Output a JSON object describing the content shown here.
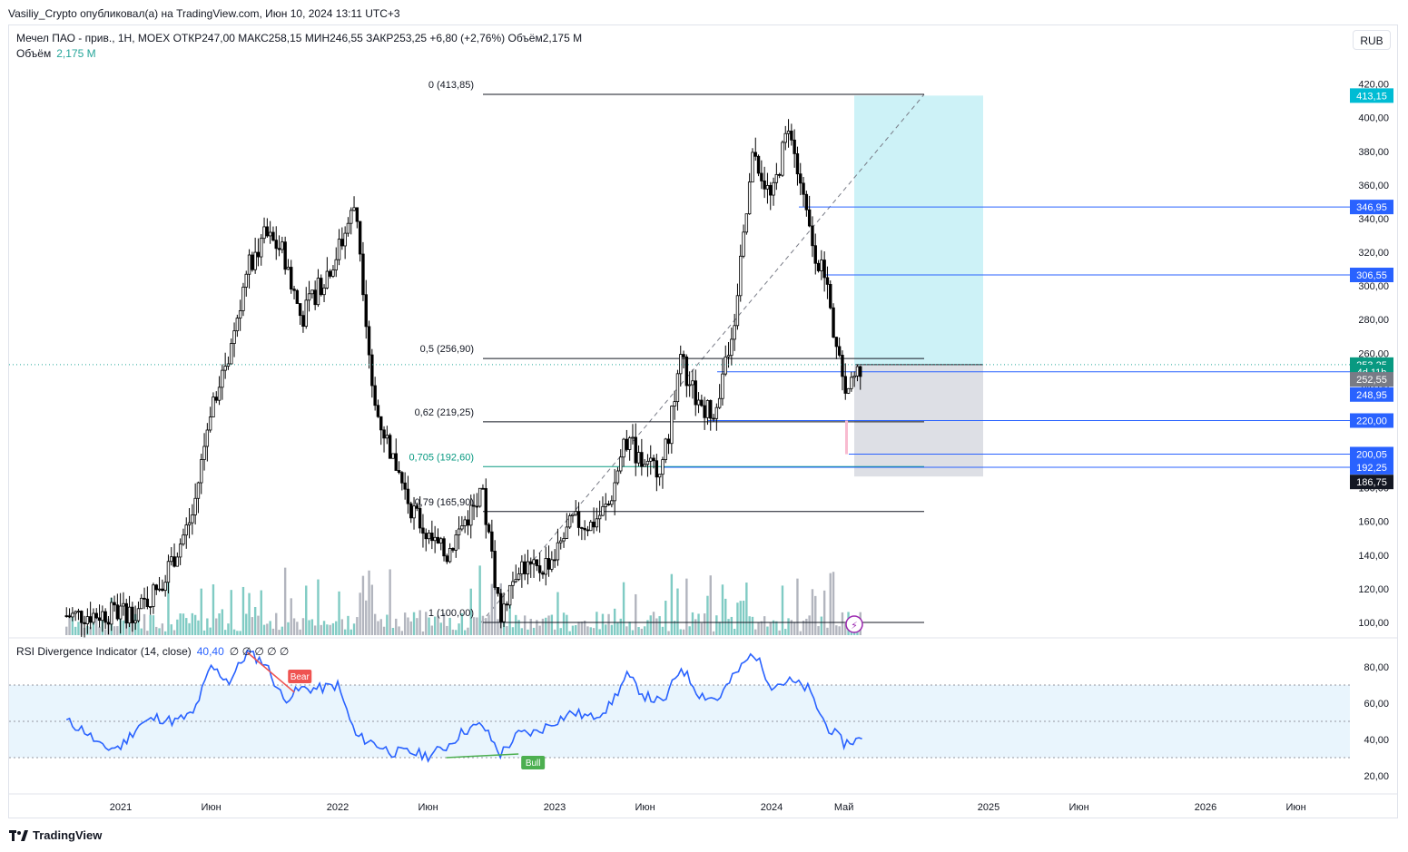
{
  "header": {
    "published": "Vasiliy_Crypto опубликовал(а) на TradingView.com, Июн 10, 2024 13:11 UTC+3",
    "symbol_line": "Мечел ПАО - прив., 1Н, MOEX  ОТКР247,00  МАКС258,15  МИН246,55  ЗАКР253,25  +6,80 (+2,76%)  Объём2,175 М",
    "volume_label": "Объём",
    "volume_value": "2,175 М",
    "currency_button": "RUB"
  },
  "rsi_legend": {
    "name": "RSI Divergence Indicator (14, close)",
    "value": "40,40",
    "zeros": "∅ ∅ ∅ ∅ ∅"
  },
  "footer": {
    "brand": "TradingView"
  },
  "colors": {
    "up": "#26a69a",
    "down": "#ef5350",
    "candle": "#000000",
    "level_blue": "#2962ff",
    "fib_teal": "#089981",
    "target_zone": "#b2ebf2",
    "stop_zone": "#d1d4dc",
    "rsi_line": "#2962ff",
    "rsi_band": "#e3f2fd"
  },
  "chart_data": {
    "type": "candlestick",
    "symbol": "Мечел ПАО - прив.",
    "ylim": [
      92,
      428
    ],
    "y_ticks": [
      "420,00",
      "400,00",
      "380,00",
      "360,00",
      "340,00",
      "320,00",
      "300,00",
      "280,00",
      "260,00",
      "240,00",
      "220,00",
      "200,00",
      "180,00",
      "160,00",
      "140,00",
      "120,00",
      "100,00"
    ],
    "y_tick_values": [
      420,
      400,
      380,
      360,
      340,
      320,
      300,
      280,
      260,
      240,
      220,
      200,
      180,
      160,
      140,
      120,
      100
    ],
    "x_ticks": [
      "2021",
      "Июн",
      "2022",
      "Июн",
      "2023",
      "Июн",
      "2024",
      "Май",
      "2025",
      "Июн",
      "2026",
      "Июн"
    ],
    "x_tick_dates": [
      "2021-01",
      "2021-06",
      "2022-01",
      "2022-06",
      "2023-01",
      "2023-06",
      "2024-01",
      "2024-05",
      "2025-01",
      "2025-06",
      "2026-01",
      "2026-06"
    ],
    "price_path": [
      {
        "date": "2020-10",
        "price": 104
      },
      {
        "date": "2020-12",
        "price": 105
      },
      {
        "date": "2021-02",
        "price": 107
      },
      {
        "date": "2021-03",
        "price": 120
      },
      {
        "date": "2021-04",
        "price": 140
      },
      {
        "date": "2021-05",
        "price": 165
      },
      {
        "date": "2021-06",
        "price": 230
      },
      {
        "date": "2021-07",
        "price": 260
      },
      {
        "date": "2021-08",
        "price": 310
      },
      {
        "date": "2021-09",
        "price": 330
      },
      {
        "date": "2021-10",
        "price": 320
      },
      {
        "date": "2021-11",
        "price": 280
      },
      {
        "date": "2021-12",
        "price": 300
      },
      {
        "date": "2022-01",
        "price": 320
      },
      {
        "date": "2022-02",
        "price": 350
      },
      {
        "date": "2022-03",
        "price": 230
      },
      {
        "date": "2022-04",
        "price": 200
      },
      {
        "date": "2022-05",
        "price": 170
      },
      {
        "date": "2022-06",
        "price": 150
      },
      {
        "date": "2022-07",
        "price": 140
      },
      {
        "date": "2022-08",
        "price": 160
      },
      {
        "date": "2022-09",
        "price": 175
      },
      {
        "date": "2022-10",
        "price": 105
      },
      {
        "date": "2022-11",
        "price": 135
      },
      {
        "date": "2022-12",
        "price": 130
      },
      {
        "date": "2023-01",
        "price": 140
      },
      {
        "date": "2023-02",
        "price": 160
      },
      {
        "date": "2023-03",
        "price": 158
      },
      {
        "date": "2023-04",
        "price": 170
      },
      {
        "date": "2023-05",
        "price": 210
      },
      {
        "date": "2023-06",
        "price": 190
      },
      {
        "date": "2023-07",
        "price": 195
      },
      {
        "date": "2023-08",
        "price": 255
      },
      {
        "date": "2023-09",
        "price": 230
      },
      {
        "date": "2023-10",
        "price": 225
      },
      {
        "date": "2023-11",
        "price": 285
      },
      {
        "date": "2023-12",
        "price": 380
      },
      {
        "date": "2024-01",
        "price": 350
      },
      {
        "date": "2024-02",
        "price": 400
      },
      {
        "date": "2024-03",
        "price": 335
      },
      {
        "date": "2024-04",
        "price": 300
      },
      {
        "date": "2024-05",
        "price": 240
      },
      {
        "date": "2024-06",
        "price": 253.25
      }
    ],
    "fib_levels": [
      {
        "label": "0 (413,85)",
        "price": 413.85
      },
      {
        "label": "0,5 (256,90)",
        "price": 256.9
      },
      {
        "label": "0,62 (219,25)",
        "price": 219.25
      },
      {
        "label": "0,705 (192,60)",
        "price": 192.6
      },
      {
        "label": "0,79 (165,90)",
        "price": 165.9
      },
      {
        "label": "1 (100,00)",
        "price": 100.0
      }
    ],
    "price_labels": [
      {
        "text": "413,15",
        "price": 413.15,
        "color": "#00bcd4"
      },
      {
        "text": "346,95",
        "price": 346.95,
        "color": "#2962ff"
      },
      {
        "text": "306,55",
        "price": 306.55,
        "color": "#2962ff"
      },
      {
        "text": "253,25",
        "price": 253.25,
        "color": "#089981"
      },
      {
        "text": "4d 11h",
        "price": 248.9,
        "color": "#089981"
      },
      {
        "text": "252,55",
        "price": 244.5,
        "color": "#787b86"
      },
      {
        "text": "248,95",
        "price": 235.5,
        "color": "#2962ff"
      },
      {
        "text": "220,00",
        "price": 220,
        "color": "#2962ff"
      },
      {
        "text": "200,05",
        "price": 200.05,
        "color": "#2962ff"
      },
      {
        "text": "192,25",
        "price": 192.25,
        "color": "#2962ff"
      },
      {
        "text": "186,75",
        "price": 183.5,
        "color": "#131722"
      }
    ],
    "position": {
      "entry": 253.25,
      "target": 413.15,
      "stop": 186.75,
      "from": "2024-06",
      "to": "2025-01"
    },
    "rsi": {
      "ylim": [
        12,
        92
      ],
      "y_ticks": [
        "80,00",
        "60,00",
        "40,00",
        "20,00"
      ],
      "y_tick_values": [
        80,
        60,
        40,
        20
      ],
      "band": [
        30,
        70
      ],
      "mid": 50,
      "current": 40.4,
      "path": [
        {
          "date": "2020-10",
          "value": 50
        },
        {
          "date": "2020-11",
          "value": 45
        },
        {
          "date": "2020-12",
          "value": 35
        },
        {
          "date": "2021-01",
          "value": 36
        },
        {
          "date": "2021-02",
          "value": 48
        },
        {
          "date": "2021-03",
          "value": 52
        },
        {
          "date": "2021-04",
          "value": 50
        },
        {
          "date": "2021-05",
          "value": 54
        },
        {
          "date": "2021-06",
          "value": 80
        },
        {
          "date": "2021-07",
          "value": 72
        },
        {
          "date": "2021-08",
          "value": 88
        },
        {
          "date": "2021-09",
          "value": 82
        },
        {
          "date": "2021-10",
          "value": 62
        },
        {
          "date": "2021-11",
          "value": 68
        },
        {
          "date": "2021-12",
          "value": 68
        },
        {
          "date": "2022-01",
          "value": 70
        },
        {
          "date": "2022-02",
          "value": 42
        },
        {
          "date": "2022-03",
          "value": 38
        },
        {
          "date": "2022-04",
          "value": 33
        },
        {
          "date": "2022-05",
          "value": 33
        },
        {
          "date": "2022-06",
          "value": 31
        },
        {
          "date": "2022-07",
          "value": 36
        },
        {
          "date": "2022-08",
          "value": 45
        },
        {
          "date": "2022-09",
          "value": 48
        },
        {
          "date": "2022-10",
          "value": 32
        },
        {
          "date": "2022-11",
          "value": 43
        },
        {
          "date": "2022-12",
          "value": 44
        },
        {
          "date": "2023-01",
          "value": 50
        },
        {
          "date": "2023-02",
          "value": 55
        },
        {
          "date": "2023-03",
          "value": 52
        },
        {
          "date": "2023-04",
          "value": 58
        },
        {
          "date": "2023-05",
          "value": 75
        },
        {
          "date": "2023-06",
          "value": 64
        },
        {
          "date": "2023-07",
          "value": 60
        },
        {
          "date": "2023-08",
          "value": 80
        },
        {
          "date": "2023-09",
          "value": 65
        },
        {
          "date": "2023-10",
          "value": 62
        },
        {
          "date": "2023-11",
          "value": 76
        },
        {
          "date": "2023-12",
          "value": 88
        },
        {
          "date": "2024-01",
          "value": 70
        },
        {
          "date": "2024-02",
          "value": 72
        },
        {
          "date": "2024-03",
          "value": 68
        },
        {
          "date": "2024-04",
          "value": 48
        },
        {
          "date": "2024-05",
          "value": 38
        },
        {
          "date": "2024-06",
          "value": 40.4
        }
      ],
      "labels": [
        {
          "text": "Bear",
          "date": "2021-10",
          "value": 62
        },
        {
          "text": "Bull",
          "date": "2022-11",
          "value": 30
        }
      ]
    }
  }
}
